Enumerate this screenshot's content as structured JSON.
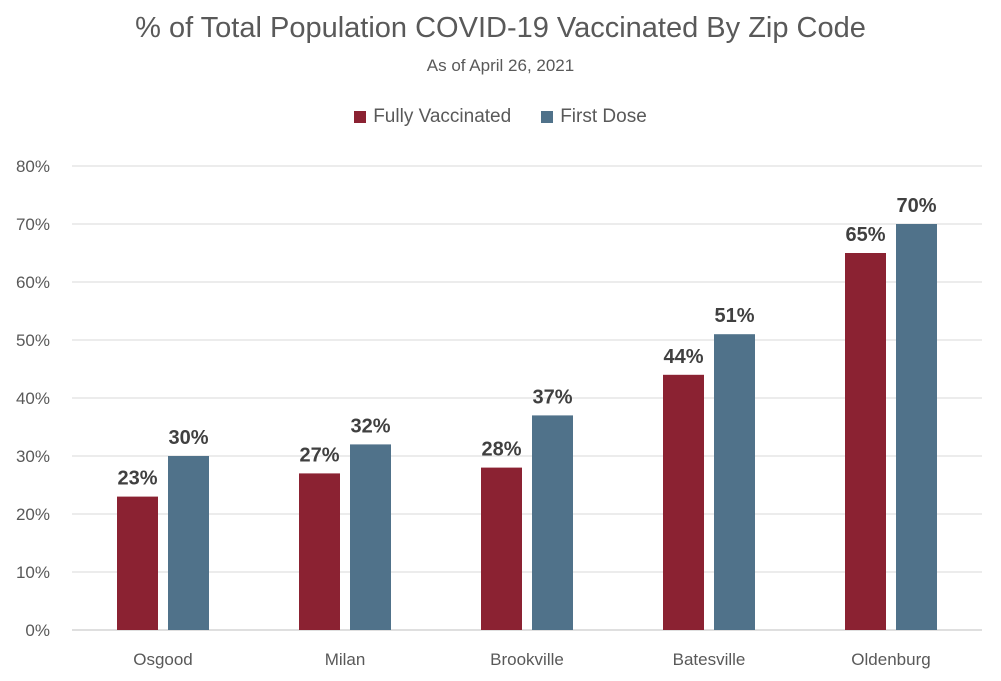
{
  "chart_data": {
    "type": "bar",
    "title": "% of Total Population COVID-19 Vaccinated By Zip Code",
    "subtitle": "As of April 26, 2021",
    "categories": [
      "Osgood",
      "Milan",
      "Brookville",
      "Batesville",
      "Oldenburg"
    ],
    "series": [
      {
        "name": "Fully Vaccinated",
        "color": "#8B2232",
        "values": [
          23,
          27,
          28,
          44,
          65
        ],
        "labels": [
          "23%",
          "27%",
          "28%",
          "44%",
          "65%"
        ]
      },
      {
        "name": "First Dose",
        "color": "#50728A",
        "values": [
          30,
          32,
          37,
          51,
          70
        ],
        "labels": [
          "30%",
          "32%",
          "37%",
          "51%",
          "70%"
        ]
      }
    ],
    "ylim": [
      0,
      80
    ],
    "yticks": [
      0,
      10,
      20,
      30,
      40,
      50,
      60,
      70,
      80
    ],
    "ytick_labels": [
      "0%",
      "10%",
      "20%",
      "30%",
      "40%",
      "50%",
      "60%",
      "70%",
      "80%"
    ],
    "grid": true,
    "legend_position": "top"
  }
}
